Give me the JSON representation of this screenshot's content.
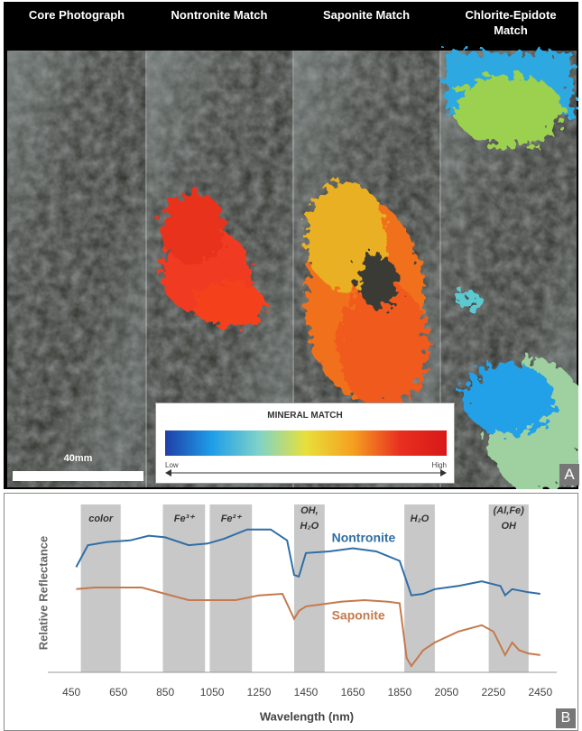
{
  "panel_a": {
    "columns": [
      "Core Photograph",
      "Nontronite Match",
      "Saponite Match",
      "Chlorite-Epidote Match"
    ],
    "legend": {
      "title": "MINERAL MATCH",
      "low": "Low",
      "high": "High"
    },
    "scale_bar": "40mm",
    "label": "A"
  },
  "chart_data": {
    "type": "line",
    "ylabel": "Relative Reflectance",
    "xlabel": "Wavelength (nm)",
    "xlim": [
      380,
      2520
    ],
    "xticks": [
      450,
      650,
      850,
      1050,
      1250,
      1450,
      1650,
      1850,
      2050,
      2250,
      2450
    ],
    "ylim": [
      0,
      100
    ],
    "bands": [
      {
        "label": [
          "color"
        ],
        "range": [
          490,
          660
        ]
      },
      {
        "label": [
          "Fe³⁺"
        ],
        "range": [
          840,
          1020
        ]
      },
      {
        "label": [
          "Fe²⁺"
        ],
        "range": [
          1040,
          1220
        ]
      },
      {
        "label": [
          "OH,",
          "H₂O"
        ],
        "range": [
          1400,
          1530
        ]
      },
      {
        "label": [
          "H₂O"
        ],
        "range": [
          1870,
          2000
        ]
      },
      {
        "label": [
          "(Al,Fe)",
          "OH"
        ],
        "range": [
          2230,
          2400
        ]
      }
    ],
    "band_color": "#c8c8c8",
    "series": [
      {
        "name": "Nontronite",
        "color": "#2f6ea6",
        "x": [
          470,
          520,
          600,
          700,
          780,
          850,
          950,
          1030,
          1100,
          1200,
          1300,
          1370,
          1400,
          1420,
          1450,
          1550,
          1650,
          1750,
          1850,
          1900,
          1950,
          2000,
          2100,
          2200,
          2280,
          2300,
          2330,
          2400,
          2450
        ],
        "values": [
          67,
          81,
          83,
          84,
          87,
          86,
          81,
          82,
          85,
          91,
          91,
          84,
          62,
          61,
          76,
          77,
          79,
          77,
          71,
          49,
          50,
          53,
          55,
          58,
          55,
          49,
          53,
          51,
          50
        ]
      },
      {
        "name": "Saponite",
        "color": "#c47a4e",
        "x": [
          470,
          550,
          650,
          750,
          850,
          950,
          1050,
          1150,
          1250,
          1350,
          1400,
          1420,
          1450,
          1500,
          1600,
          1700,
          1800,
          1850,
          1880,
          1900,
          1950,
          2000,
          2100,
          2200,
          2250,
          2300,
          2330,
          2360,
          2400,
          2450
        ],
        "values": [
          53,
          54,
          54,
          54,
          50,
          46,
          46,
          46,
          49,
          50,
          34,
          39,
          42,
          43,
          45,
          46,
          45,
          44,
          9,
          4,
          14,
          19,
          26,
          30,
          26,
          11,
          19,
          14,
          12,
          11
        ]
      }
    ]
  },
  "panel_b_label": "B"
}
